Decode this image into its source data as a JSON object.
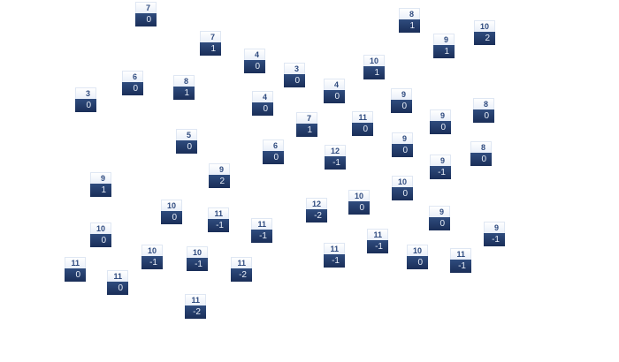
{
  "tiles": [
    {
      "top": "7",
      "bottom": "0"
    },
    {
      "top": "7",
      "bottom": "1"
    },
    {
      "top": "4",
      "bottom": "0"
    },
    {
      "top": "3",
      "bottom": "0"
    },
    {
      "top": "6",
      "bottom": "0"
    },
    {
      "top": "8",
      "bottom": "1"
    },
    {
      "top": "3",
      "bottom": "0"
    },
    {
      "top": "4",
      "bottom": "0"
    },
    {
      "top": "5",
      "bottom": "0"
    },
    {
      "top": "6",
      "bottom": "0"
    },
    {
      "top": "9",
      "bottom": "2"
    },
    {
      "top": "9",
      "bottom": "1"
    },
    {
      "top": "8",
      "bottom": "1"
    },
    {
      "top": "10",
      "bottom": "2"
    },
    {
      "top": "9",
      "bottom": "1"
    },
    {
      "top": "10",
      "bottom": "1"
    },
    {
      "top": "4",
      "bottom": "0"
    },
    {
      "top": "9",
      "bottom": "0"
    },
    {
      "top": "7",
      "bottom": "1"
    },
    {
      "top": "11",
      "bottom": "0"
    },
    {
      "top": "9",
      "bottom": "0"
    },
    {
      "top": "8",
      "bottom": "0"
    },
    {
      "top": "9",
      "bottom": "0"
    },
    {
      "top": "12",
      "bottom": "-1"
    },
    {
      "top": "9",
      "bottom": "-1"
    },
    {
      "top": "8",
      "bottom": "0"
    },
    {
      "top": "10",
      "bottom": "0"
    },
    {
      "top": "11",
      "bottom": "-1"
    },
    {
      "top": "11",
      "bottom": "-1"
    },
    {
      "top": "10",
      "bottom": "0"
    },
    {
      "top": "10",
      "bottom": "-1"
    },
    {
      "top": "10",
      "bottom": "-1"
    },
    {
      "top": "11",
      "bottom": "0"
    },
    {
      "top": "11",
      "bottom": "-2"
    },
    {
      "top": "11",
      "bottom": "0"
    },
    {
      "top": "11",
      "bottom": "-2"
    },
    {
      "top": "10",
      "bottom": "0"
    },
    {
      "top": "10",
      "bottom": "0"
    },
    {
      "top": "12",
      "bottom": "-2"
    },
    {
      "top": "9",
      "bottom": "0"
    },
    {
      "top": "9",
      "bottom": "-1"
    },
    {
      "top": "11",
      "bottom": "-1"
    },
    {
      "top": "11",
      "bottom": "-1"
    },
    {
      "top": "10",
      "bottom": "0"
    },
    {
      "top": "11",
      "bottom": "-1"
    }
  ],
  "colors": {
    "tile_top": "#eef3fb",
    "tile_bottom": "#223a68",
    "top_text": "#2f4b7f",
    "bottom_text": "#e8eef8"
  }
}
